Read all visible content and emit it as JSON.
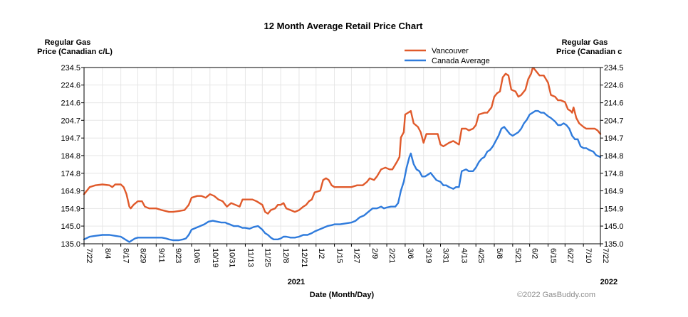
{
  "chart_data": {
    "type": "line",
    "title": "12 Month Average Retail Price Chart",
    "ylabel_left": [
      "Regular Gas",
      "Price (Canadian c/L)"
    ],
    "ylabel_right": [
      "Regular Gas",
      "Price (Canadian c"
    ],
    "xlabel": "Date (Month/Day)",
    "years": [
      {
        "label": "2021",
        "at_day": 150
      },
      {
        "label": "2022",
        "at_day": 371
      }
    ],
    "watermark": "©2022 GasBuddy.com",
    "ylim": [
      135.0,
      234.5
    ],
    "y_ticks": [
      "135.0",
      "145.0",
      "154.9",
      "164.9",
      "174.8",
      "184.8",
      "194.7",
      "204.7",
      "214.6",
      "224.6",
      "234.5"
    ],
    "xlim": [
      0,
      365
    ],
    "x_ticks": [
      {
        "label": "7/22",
        "day": 0
      },
      {
        "label": "8/4",
        "day": 13
      },
      {
        "label": "8/17",
        "day": 26
      },
      {
        "label": "8/29",
        "day": 38
      },
      {
        "label": "9/11",
        "day": 51
      },
      {
        "label": "9/23",
        "day": 63
      },
      {
        "label": "10/6",
        "day": 76
      },
      {
        "label": "10/19",
        "day": 89
      },
      {
        "label": "10/31",
        "day": 101
      },
      {
        "label": "11/13",
        "day": 114
      },
      {
        "label": "11/25",
        "day": 126
      },
      {
        "label": "12/8",
        "day": 139
      },
      {
        "label": "12/21",
        "day": 152
      },
      {
        "label": "1/2",
        "day": 164
      },
      {
        "label": "1/15",
        "day": 177
      },
      {
        "label": "1/27",
        "day": 189
      },
      {
        "label": "2/9",
        "day": 202
      },
      {
        "label": "2/21",
        "day": 214
      },
      {
        "label": "3/6",
        "day": 227
      },
      {
        "label": "3/19",
        "day": 240
      },
      {
        "label": "3/31",
        "day": 252
      },
      {
        "label": "4/13",
        "day": 265
      },
      {
        "label": "4/25",
        "day": 277
      },
      {
        "label": "5/8",
        "day": 290
      },
      {
        "label": "5/21",
        "day": 303
      },
      {
        "label": "6/2",
        "day": 315
      },
      {
        "label": "6/15",
        "day": 328
      },
      {
        "label": "6/27",
        "day": 340
      },
      {
        "label": "7/10",
        "day": 353
      },
      {
        "label": "7/22",
        "day": 365
      }
    ],
    "series": [
      {
        "name": "Vancouver",
        "color": "#e05a2b",
        "points": [
          [
            0,
            163
          ],
          [
            4,
            167
          ],
          [
            8,
            168
          ],
          [
            13,
            168.5
          ],
          [
            18,
            168
          ],
          [
            20,
            167
          ],
          [
            22,
            168.5
          ],
          [
            26,
            168.5
          ],
          [
            28,
            167
          ],
          [
            30,
            163
          ],
          [
            32,
            156
          ],
          [
            33,
            155
          ],
          [
            35,
            157
          ],
          [
            38,
            159
          ],
          [
            41,
            159
          ],
          [
            43,
            156
          ],
          [
            46,
            155
          ],
          [
            51,
            155
          ],
          [
            55,
            154
          ],
          [
            60,
            153
          ],
          [
            63,
            153
          ],
          [
            67,
            153.5
          ],
          [
            71,
            154
          ],
          [
            74,
            157
          ],
          [
            76,
            161
          ],
          [
            80,
            162
          ],
          [
            83,
            162
          ],
          [
            86,
            161
          ],
          [
            89,
            163
          ],
          [
            92,
            162
          ],
          [
            95,
            160
          ],
          [
            98,
            159
          ],
          [
            100,
            157
          ],
          [
            101,
            156
          ],
          [
            104,
            158
          ],
          [
            107,
            157
          ],
          [
            110,
            156
          ],
          [
            112,
            160
          ],
          [
            114,
            160
          ],
          [
            117,
            160
          ],
          [
            119,
            160
          ],
          [
            122,
            159
          ],
          [
            124,
            158
          ],
          [
            126,
            157
          ],
          [
            128,
            153
          ],
          [
            130,
            152
          ],
          [
            132,
            154
          ],
          [
            135,
            155
          ],
          [
            137,
            157
          ],
          [
            139,
            157
          ],
          [
            141,
            158
          ],
          [
            143,
            155
          ],
          [
            146,
            154
          ],
          [
            149,
            153
          ],
          [
            152,
            154
          ],
          [
            155,
            156
          ],
          [
            157,
            157
          ],
          [
            159,
            159
          ],
          [
            161,
            160
          ],
          [
            163,
            164
          ],
          [
            167,
            165
          ],
          [
            169,
            171
          ],
          [
            171,
            172
          ],
          [
            173,
            171
          ],
          [
            175,
            168
          ],
          [
            177,
            167
          ],
          [
            181,
            167
          ],
          [
            185,
            167
          ],
          [
            189,
            167
          ],
          [
            193,
            168
          ],
          [
            197,
            168
          ],
          [
            200,
            170
          ],
          [
            202,
            172
          ],
          [
            205,
            171
          ],
          [
            207,
            173
          ],
          [
            210,
            177
          ],
          [
            213,
            178
          ],
          [
            216,
            177
          ],
          [
            218,
            177
          ],
          [
            221,
            181
          ],
          [
            223,
            184
          ],
          [
            224,
            195
          ],
          [
            226,
            198
          ],
          [
            227,
            208
          ],
          [
            229,
            209
          ],
          [
            231,
            210
          ],
          [
            233,
            203
          ],
          [
            236,
            201
          ],
          [
            238,
            198
          ],
          [
            240,
            192
          ],
          [
            242,
            197
          ],
          [
            246,
            197
          ],
          [
            250,
            197
          ],
          [
            252,
            191
          ],
          [
            254,
            190
          ],
          [
            256,
            191
          ],
          [
            258,
            192
          ],
          [
            261,
            193
          ],
          [
            263,
            192
          ],
          [
            265,
            191
          ],
          [
            267,
            200
          ],
          [
            270,
            200
          ],
          [
            272,
            199
          ],
          [
            275,
            200
          ],
          [
            277,
            202
          ],
          [
            279,
            208
          ],
          [
            283,
            209
          ],
          [
            285,
            209
          ],
          [
            288,
            212
          ],
          [
            290,
            218
          ],
          [
            292,
            220
          ],
          [
            294,
            221
          ],
          [
            296,
            229
          ],
          [
            298,
            231
          ],
          [
            300,
            230
          ],
          [
            302,
            222
          ],
          [
            305,
            221
          ],
          [
            307,
            218
          ],
          [
            309,
            219
          ],
          [
            312,
            222
          ],
          [
            314,
            228
          ],
          [
            316,
            231
          ],
          [
            317,
            234
          ],
          [
            318,
            234
          ],
          [
            320,
            232
          ],
          [
            322,
            230
          ],
          [
            325,
            230
          ],
          [
            328,
            226
          ],
          [
            330,
            219
          ],
          [
            333,
            218
          ],
          [
            335,
            216
          ],
          [
            337,
            216
          ],
          [
            340,
            215
          ],
          [
            342,
            211
          ],
          [
            344,
            210
          ],
          [
            345,
            209
          ],
          [
            346,
            212
          ],
          [
            348,
            206
          ],
          [
            350,
            203
          ],
          [
            353,
            201
          ],
          [
            355,
            200
          ],
          [
            358,
            200
          ],
          [
            361,
            200
          ],
          [
            363,
            199
          ],
          [
            365,
            197
          ]
        ]
      },
      {
        "name": "Canada Average",
        "color": "#2f7bdc",
        "points": [
          [
            0,
            137.5
          ],
          [
            4,
            139
          ],
          [
            8,
            139.5
          ],
          [
            13,
            140
          ],
          [
            18,
            140
          ],
          [
            22,
            139.5
          ],
          [
            26,
            139
          ],
          [
            28,
            138
          ],
          [
            30,
            137
          ],
          [
            32,
            136
          ],
          [
            34,
            137
          ],
          [
            36,
            138
          ],
          [
            38,
            138.5
          ],
          [
            42,
            138.5
          ],
          [
            46,
            138.5
          ],
          [
            51,
            138.5
          ],
          [
            55,
            138.5
          ],
          [
            58,
            138
          ],
          [
            60,
            137.5
          ],
          [
            63,
            137
          ],
          [
            67,
            137
          ],
          [
            70,
            137.5
          ],
          [
            72,
            138
          ],
          [
            74,
            140
          ],
          [
            76,
            143
          ],
          [
            79,
            144
          ],
          [
            82,
            145
          ],
          [
            85,
            146
          ],
          [
            88,
            147.5
          ],
          [
            91,
            148
          ],
          [
            94,
            147.5
          ],
          [
            97,
            147
          ],
          [
            100,
            147
          ],
          [
            101,
            146.5
          ],
          [
            103,
            146
          ],
          [
            106,
            145
          ],
          [
            109,
            145
          ],
          [
            112,
            144
          ],
          [
            114,
            144
          ],
          [
            117,
            143.5
          ],
          [
            120,
            144.5
          ],
          [
            123,
            145
          ],
          [
            126,
            143
          ],
          [
            128,
            141
          ],
          [
            130,
            140
          ],
          [
            132,
            138.5
          ],
          [
            134,
            137.5
          ],
          [
            137,
            137.5
          ],
          [
            139,
            138
          ],
          [
            141,
            139
          ],
          [
            143,
            139
          ],
          [
            146,
            138.5
          ],
          [
            149,
            138.5
          ],
          [
            152,
            139
          ],
          [
            155,
            140
          ],
          [
            158,
            140
          ],
          [
            161,
            141
          ],
          [
            163,
            142
          ],
          [
            166,
            143
          ],
          [
            169,
            144
          ],
          [
            172,
            145
          ],
          [
            175,
            145.5
          ],
          [
            177,
            146
          ],
          [
            181,
            146
          ],
          [
            185,
            146.5
          ],
          [
            189,
            147
          ],
          [
            192,
            148
          ],
          [
            195,
            150
          ],
          [
            198,
            151
          ],
          [
            201,
            153
          ],
          [
            204,
            155
          ],
          [
            207,
            155
          ],
          [
            210,
            156
          ],
          [
            212,
            155
          ],
          [
            214,
            155.5
          ],
          [
            217,
            156
          ],
          [
            220,
            156
          ],
          [
            222,
            158
          ],
          [
            224,
            165
          ],
          [
            226,
            170
          ],
          [
            228,
            178
          ],
          [
            230,
            184
          ],
          [
            231,
            186
          ],
          [
            233,
            180
          ],
          [
            235,
            177
          ],
          [
            237,
            176
          ],
          [
            239,
            173
          ],
          [
            241,
            173
          ],
          [
            243,
            174
          ],
          [
            245,
            175
          ],
          [
            247,
            173
          ],
          [
            249,
            171
          ],
          [
            252,
            170
          ],
          [
            254,
            168
          ],
          [
            256,
            168
          ],
          [
            258,
            167
          ],
          [
            261,
            166
          ],
          [
            263,
            167
          ],
          [
            265,
            167
          ],
          [
            267,
            176
          ],
          [
            270,
            177
          ],
          [
            272,
            176
          ],
          [
            275,
            176
          ],
          [
            277,
            178
          ],
          [
            279,
            181
          ],
          [
            281,
            183
          ],
          [
            283,
            184
          ],
          [
            285,
            187
          ],
          [
            287,
            188
          ],
          [
            289,
            190
          ],
          [
            291,
            193
          ],
          [
            293,
            196
          ],
          [
            295,
            200
          ],
          [
            297,
            201
          ],
          [
            299,
            199
          ],
          [
            301,
            197
          ],
          [
            303,
            196
          ],
          [
            305,
            197
          ],
          [
            307,
            198
          ],
          [
            309,
            200
          ],
          [
            311,
            203
          ],
          [
            313,
            205
          ],
          [
            315,
            208
          ],
          [
            317,
            209
          ],
          [
            319,
            210
          ],
          [
            321,
            210
          ],
          [
            323,
            209
          ],
          [
            325,
            209
          ],
          [
            328,
            207
          ],
          [
            330,
            206
          ],
          [
            333,
            204
          ],
          [
            335,
            202
          ],
          [
            337,
            202
          ],
          [
            339,
            203
          ],
          [
            341,
            202
          ],
          [
            343,
            200
          ],
          [
            345,
            196
          ],
          [
            347,
            194
          ],
          [
            349,
            194
          ],
          [
            351,
            190
          ],
          [
            353,
            189
          ],
          [
            355,
            189
          ],
          [
            357,
            188
          ],
          [
            360,
            187
          ],
          [
            362,
            185
          ],
          [
            365,
            184
          ]
        ]
      }
    ]
  }
}
